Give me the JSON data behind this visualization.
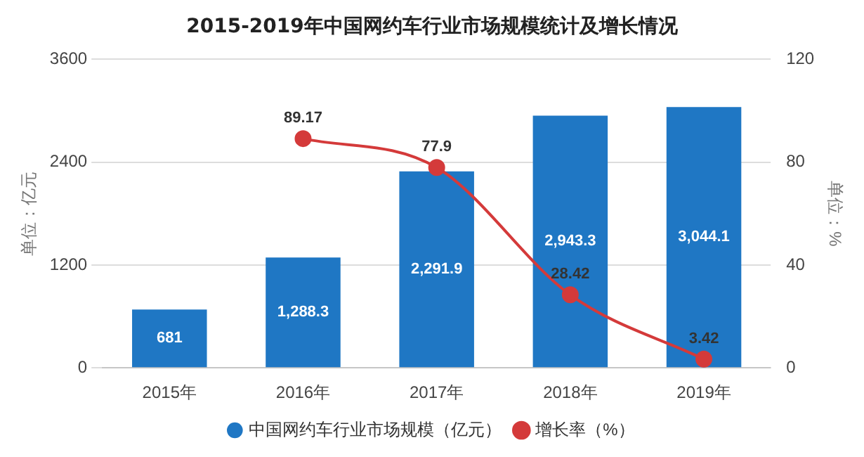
{
  "chart_data": {
    "type": "bar",
    "title": "2015-2019年中国网约车行业市场规模统计及增长情况",
    "categories": [
      "2015年",
      "2016年",
      "2017年",
      "2018年",
      "2019年"
    ],
    "series": [
      {
        "name": "中国网约车行业市场规模（亿元）",
        "color": "#1f77c4",
        "values": [
          681,
          1288.3,
          2291.9,
          2943.3,
          3044.1
        ],
        "value_labels": [
          "681",
          "1,288.3",
          "2,291.9",
          "2,943.3",
          "3,044.1"
        ]
      },
      {
        "name": "增长率（%）",
        "type": "line",
        "axis": "y2",
        "color": "#d43a3a",
        "values": [
          null,
          89.17,
          77.9,
          28.42,
          3.42
        ],
        "value_labels": [
          null,
          "89.17",
          "77.9",
          "28.42",
          "3.42"
        ]
      }
    ],
    "ylabel": "单位：亿元",
    "y2label": "单位：%",
    "ylim": [
      0,
      3600
    ],
    "yticks": [
      0,
      1200,
      2400,
      3600
    ],
    "y2lim": [
      0,
      120
    ],
    "y2ticks": [
      0,
      40,
      80,
      120
    ],
    "grid": "y",
    "legend": "bottom",
    "marker": "circle"
  }
}
